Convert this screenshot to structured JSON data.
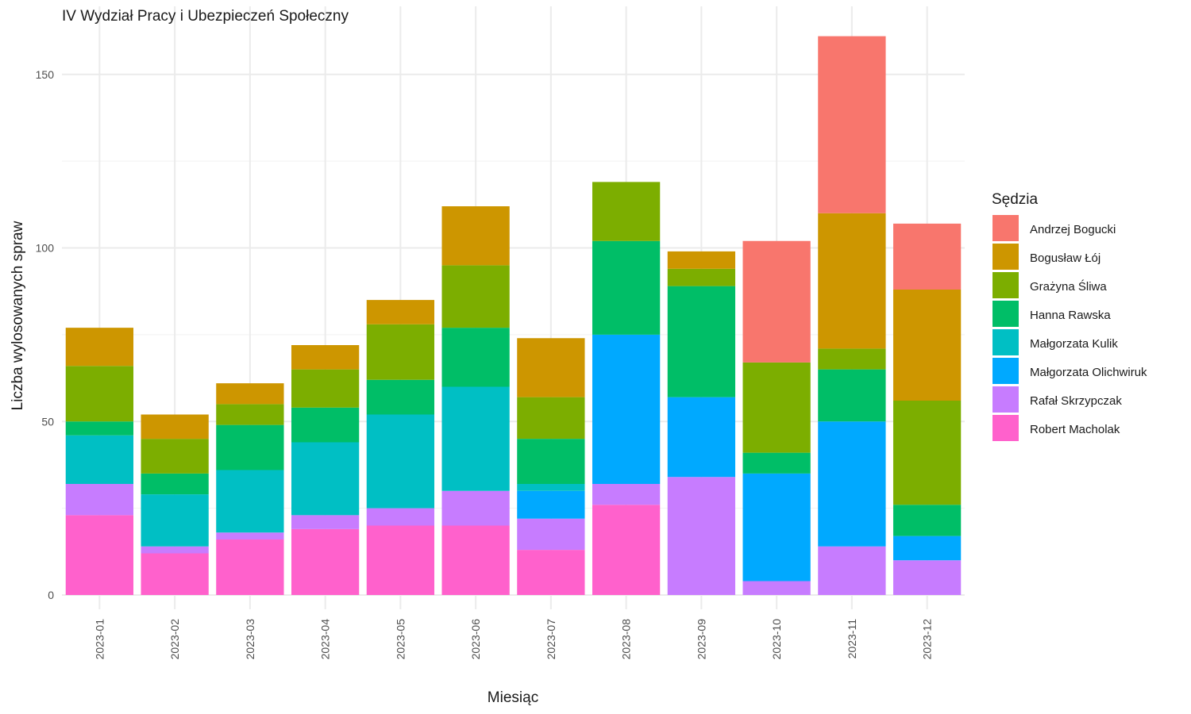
{
  "chart_data": {
    "type": "bar",
    "stacked": true,
    "title": "IV Wydział Pracy i Ubezpieczeń Społeczny",
    "xlabel": "Miesiąc",
    "ylabel": "Liczba wylosowanych spraw",
    "ylim": [
      -6,
      164
    ],
    "yticks": [
      0,
      50,
      100,
      150
    ],
    "grid": true,
    "legend_title": "Sędzia",
    "legend_position": "right",
    "categories": [
      "2023-01",
      "2023-02",
      "2023-03",
      "2023-04",
      "2023-05",
      "2023-06",
      "2023-07",
      "2023-08",
      "2023-09",
      "2023-10",
      "2023-11",
      "2023-12"
    ],
    "stack_order": [
      "Robert Macholak",
      "Rafał Skrzypczak",
      "Małgorzata Olichwiruk",
      "Małgorzata Kulik",
      "Hanna Rawska",
      "Grażyna Śliwa",
      "Bogusław Łój",
      "Andrzej Bogucki"
    ],
    "series": [
      {
        "name": "Andrzej Bogucki",
        "color": "#F8766D",
        "values": [
          0,
          0,
          0,
          0,
          0,
          0,
          0,
          0,
          0,
          35,
          51,
          19
        ]
      },
      {
        "name": "Bogusław Łój",
        "color": "#CD9600",
        "values": [
          11,
          7,
          6,
          7,
          7,
          17,
          17,
          0,
          5,
          0,
          39,
          32
        ]
      },
      {
        "name": "Grażyna Śliwa",
        "color": "#7CAE00",
        "values": [
          16,
          10,
          6,
          11,
          16,
          18,
          12,
          17,
          5,
          26,
          6,
          30
        ]
      },
      {
        "name": "Hanna Rawska",
        "color": "#00BE67",
        "values": [
          4,
          6,
          13,
          10,
          10,
          17,
          13,
          27,
          32,
          6,
          15,
          9
        ]
      },
      {
        "name": "Małgorzata Kulik",
        "color": "#00BFC4",
        "values": [
          14,
          15,
          18,
          21,
          27,
          30,
          2,
          0,
          0,
          0,
          0,
          0
        ]
      },
      {
        "name": "Małgorzata Olichwiruk",
        "color": "#00A9FF",
        "values": [
          0,
          0,
          0,
          0,
          0,
          0,
          8,
          43,
          23,
          31,
          36,
          7
        ]
      },
      {
        "name": "Rafał Skrzypczak",
        "color": "#C77CFF",
        "values": [
          9,
          2,
          2,
          4,
          5,
          10,
          9,
          6,
          34,
          4,
          14,
          10
        ]
      },
      {
        "name": "Robert Macholak",
        "color": "#FF61CC",
        "values": [
          23,
          12,
          16,
          19,
          20,
          20,
          13,
          26,
          0,
          0,
          0,
          0
        ]
      }
    ]
  }
}
